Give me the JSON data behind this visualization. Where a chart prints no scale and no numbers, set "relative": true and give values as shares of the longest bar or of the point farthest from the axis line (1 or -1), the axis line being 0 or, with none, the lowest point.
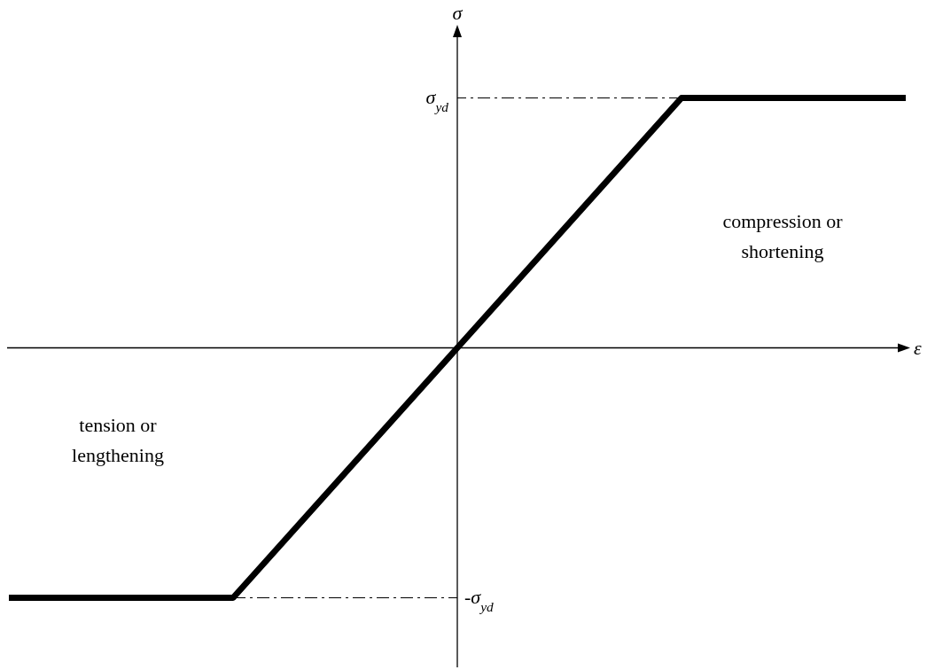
{
  "chart_data": {
    "type": "line",
    "xlabel": "ε",
    "ylabel": "σ",
    "categories": [
      null,
      null,
      null,
      null,
      null
    ],
    "relative": true,
    "series": [
      {
        "color": "#000000",
        "values": [
          -1,
          -1,
          0,
          1,
          1
        ]
      }
    ],
    "marker": "none",
    "line_style": "solid",
    "ref_lines": [
      {
        "axis": "y",
        "value": 1,
        "label": "σ$_{yd}$",
        "line_style": "dashed",
        "color": "#000000"
      },
      {
        "axis": "y",
        "value": -1,
        "label": "-σ$_{yd}$",
        "line_style": "dashed",
        "color": "#000000"
      }
    ],
    "annotations": [
      "compression or shortening",
      "tension or lengthening"
    ]
  }
}
